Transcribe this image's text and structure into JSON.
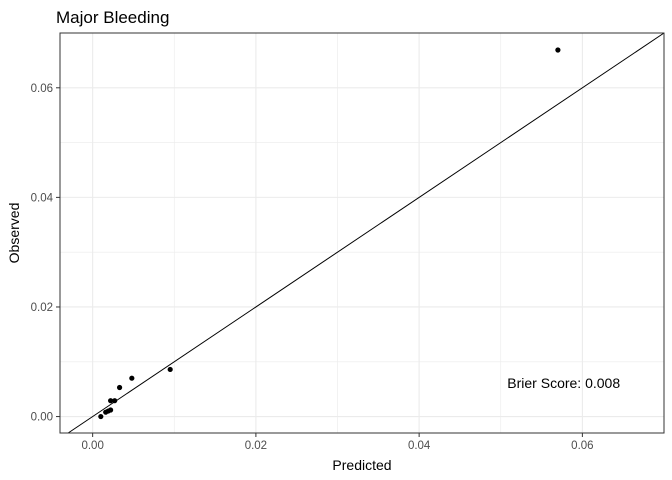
{
  "chart_data": {
    "type": "scatter",
    "title": "Major Bleeding",
    "xlabel": "Predicted",
    "ylabel": "Observed",
    "xlim": [
      -0.004,
      0.07
    ],
    "ylim": [
      -0.003,
      0.07
    ],
    "xticks": [
      0.0,
      0.02,
      0.04,
      0.06
    ],
    "yticks": [
      0.0,
      0.02,
      0.04,
      0.06
    ],
    "xtick_labels": [
      "0.00",
      "0.02",
      "0.04",
      "0.06"
    ],
    "ytick_labels": [
      "0.00",
      "0.02",
      "0.04",
      "0.06"
    ],
    "grid": true,
    "reference_line": "y = x",
    "points": [
      {
        "x": 0.001,
        "y": 0.0
      },
      {
        "x": 0.0016,
        "y": 0.0008
      },
      {
        "x": 0.0019,
        "y": 0.001
      },
      {
        "x": 0.0022,
        "y": 0.0012
      },
      {
        "x": 0.0022,
        "y": 0.0029
      },
      {
        "x": 0.0027,
        "y": 0.0029
      },
      {
        "x": 0.0033,
        "y": 0.0053
      },
      {
        "x": 0.0048,
        "y": 0.007
      },
      {
        "x": 0.0095,
        "y": 0.0086
      },
      {
        "x": 0.057,
        "y": 0.0669
      }
    ],
    "annotation": "Brier Score: 0.008",
    "annotation_pos": {
      "x": 0.0508,
      "y": 0.0052
    }
  }
}
